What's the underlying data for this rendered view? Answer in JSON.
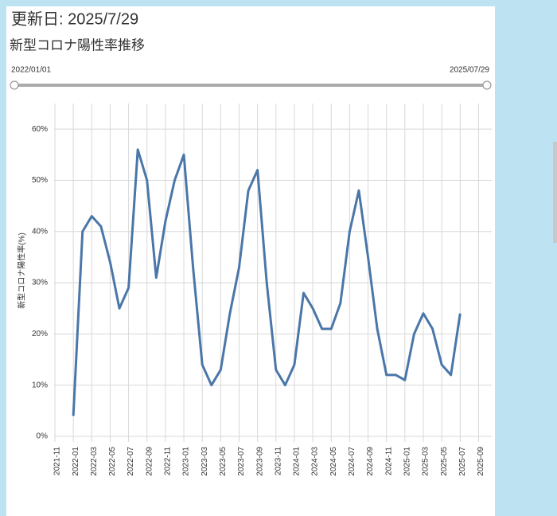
{
  "header": {
    "updated": "更新日: 2025/7/29",
    "subtitle": "新型コロナ陽性率推移"
  },
  "slider": {
    "start": "2022/01/01",
    "end": "2025/07/29"
  },
  "chart_data": {
    "type": "line",
    "y_label": "新型コロナ陽性率(%)",
    "x": [
      "2022-01",
      "2022-02",
      "2022-03",
      "2022-04",
      "2022-05",
      "2022-06",
      "2022-07",
      "2022-08",
      "2022-09",
      "2022-10",
      "2022-11",
      "2022-12",
      "2023-01",
      "2023-02",
      "2023-03",
      "2023-04",
      "2023-05",
      "2023-06",
      "2023-07",
      "2023-08",
      "2023-09",
      "2023-10",
      "2023-11",
      "2023-12",
      "2024-01",
      "2024-02",
      "2024-03",
      "2024-04",
      "2024-05",
      "2024-06",
      "2024-07",
      "2024-08",
      "2024-09",
      "2024-10",
      "2024-11",
      "2024-12",
      "2025-01",
      "2025-02",
      "2025-03",
      "2025-04",
      "2025-05",
      "2025-06",
      "2025-07"
    ],
    "series": [
      {
        "name": "陽性率",
        "color": "#4a76a8",
        "values": [
          4,
          40,
          43,
          41,
          34,
          25,
          29,
          56,
          50,
          31,
          42,
          50,
          55,
          33,
          14,
          10,
          13,
          24,
          33,
          48,
          52,
          30,
          13,
          10,
          14,
          28,
          25,
          21,
          21,
          26,
          40,
          48,
          35,
          21,
          12,
          12,
          11,
          20,
          24,
          21,
          14,
          12,
          24
        ]
      }
    ],
    "xlim": [
      "2021-11",
      "2025-10"
    ],
    "xticks": [
      "2021-11",
      "2022-01",
      "2022-03",
      "2022-05",
      "2022-07",
      "2022-09",
      "2022-11",
      "2023-01",
      "2023-03",
      "2023-05",
      "2023-07",
      "2023-09",
      "2023-11",
      "2024-01",
      "2024-03",
      "2024-05",
      "2024-07",
      "2024-09",
      "2024-11",
      "2025-01",
      "2025-03",
      "2025-05",
      "2025-07",
      "2025-09"
    ],
    "ylim": [
      0,
      65
    ],
    "yticks": [
      {
        "value": 0,
        "label": "0%"
      },
      {
        "value": 10,
        "label": "10%"
      },
      {
        "value": 20,
        "label": "20%"
      },
      {
        "value": 30,
        "label": "30%"
      },
      {
        "value": 40,
        "label": "40%"
      },
      {
        "value": 50,
        "label": "50%"
      },
      {
        "value": 60,
        "label": "60%"
      }
    ],
    "grid": true
  }
}
